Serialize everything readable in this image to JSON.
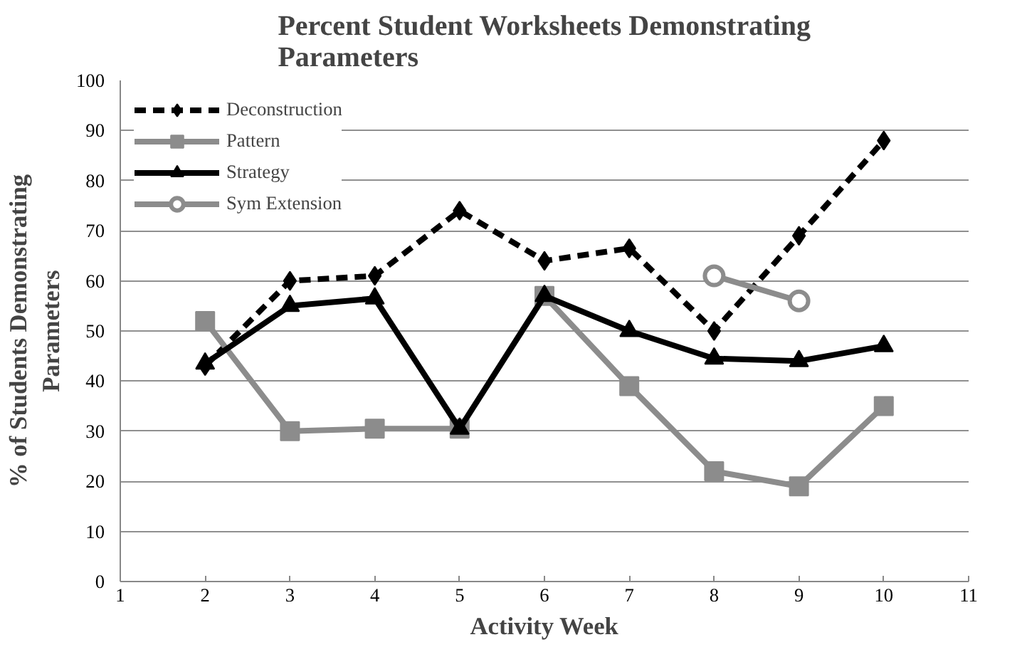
{
  "chart_data": {
    "type": "line",
    "title": "Percent Student Worksheets Demonstrating\nParameters",
    "xlabel": "Activity Week",
    "ylabel": "% of Students Demonstrating\nParameters",
    "x": [
      2,
      3,
      4,
      5,
      6,
      7,
      8,
      9,
      10
    ],
    "series": [
      {
        "name": "Deconstruction",
        "color": "#000000",
        "marker": "diamond",
        "line_style": "dashed",
        "values": [
          43,
          60,
          61,
          74,
          64,
          66.5,
          50,
          69,
          88
        ]
      },
      {
        "name": "Pattern",
        "color": "#8c8c8c",
        "marker": "square",
        "line_style": "solid",
        "values": [
          52,
          30,
          30.5,
          30.5,
          57,
          39,
          22,
          19,
          35
        ]
      },
      {
        "name": "Strategy",
        "color": "#000000",
        "marker": "triangle",
        "line_style": "solid",
        "values": [
          43.5,
          55,
          56.5,
          30.5,
          57,
          50,
          44.5,
          44,
          47
        ]
      },
      {
        "name": "Sym Extension",
        "color": "#8c8c8c",
        "marker": "circle",
        "line_style": "solid",
        "values": [
          null,
          null,
          null,
          null,
          null,
          null,
          61,
          56,
          null
        ]
      }
    ],
    "xlim": [
      1,
      11
    ],
    "ylim": [
      0,
      100
    ],
    "xticks": [
      1,
      2,
      3,
      4,
      5,
      6,
      7,
      8,
      9,
      10,
      11
    ],
    "yticks": [
      0,
      10,
      20,
      30,
      40,
      50,
      60,
      70,
      80,
      90,
      100
    ],
    "grid": "y",
    "legend": "top left"
  }
}
